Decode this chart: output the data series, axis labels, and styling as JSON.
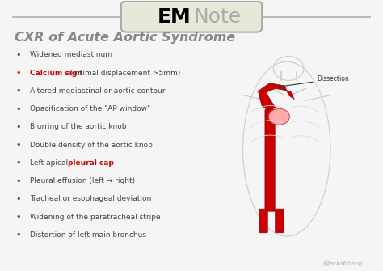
{
  "title": "CXR of Acute Aortic Syndrome",
  "logo_em": "EM",
  "logo_note": "Note",
  "bg_color": "#f5f5f5",
  "border_color": "#cccccc",
  "title_color": "#888888",
  "bullet_color": "#444444",
  "red_color": "#cc0000",
  "bullet_items": [
    {
      "text": "Widened mediastinum",
      "red_part": null,
      "pre_red": null,
      "post_red": null
    },
    {
      "text": null,
      "red_part": "Calcium sign",
      "pre_red": "",
      "post_red": " (intimal displacement >5mm)"
    },
    {
      "text": "Altered mediastinal or aortic contour",
      "red_part": null,
      "pre_red": null,
      "post_red": null
    },
    {
      "text": "Opacification of the \"AP window\"",
      "red_part": null,
      "pre_red": null,
      "post_red": null
    },
    {
      "text": "Blurring of the aortic knob",
      "red_part": null,
      "pre_red": null,
      "post_red": null
    },
    {
      "text": "Double density of the aortic knob",
      "red_part": null,
      "pre_red": null,
      "post_red": null
    },
    {
      "text": null,
      "red_part": "pleural cap",
      "pre_red": "Left apical ",
      "post_red": ""
    },
    {
      "text": "Pleural effusion (left → right)",
      "red_part": null,
      "pre_red": null,
      "post_red": null
    },
    {
      "text": "Tracheal or esophageal deviation",
      "red_part": null,
      "pre_red": null,
      "post_red": null
    },
    {
      "text": "Widening of the paratracheal stripe",
      "red_part": null,
      "pre_red": null,
      "post_red": null
    },
    {
      "text": "Distortion of left main bronchus",
      "red_part": null,
      "pre_red": null,
      "post_red": null
    }
  ],
  "watermark": "@jackofchong",
  "dissection_label": "Dissection"
}
